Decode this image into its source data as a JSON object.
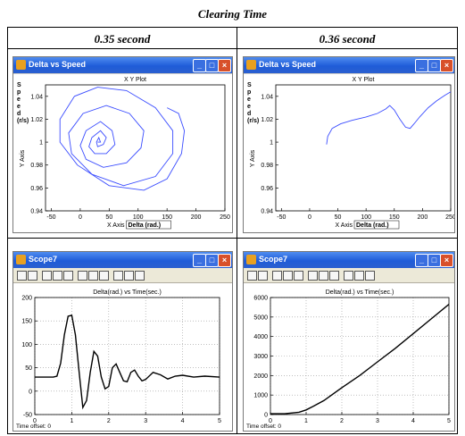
{
  "caption": "Clearing Time",
  "columns": [
    "0.35 second",
    "0.36 second"
  ],
  "colors": {
    "trace_blue": "#3a4cff",
    "trace_black": "#000000",
    "titlebar": "#1f5cd8"
  },
  "windows": {
    "xy_left": {
      "title": "Delta vs Speed",
      "icon": "simulink-window-icon"
    },
    "xy_right": {
      "title": "Delta vs Speed",
      "icon": "simulink-window-icon"
    },
    "scope_left": {
      "title": "Scope7",
      "icon": "scope-window-icon"
    },
    "scope_right": {
      "title": "Scope7",
      "icon": "scope-window-icon"
    }
  },
  "window_buttons": {
    "minimize": "_",
    "maximize": "□",
    "close": "×"
  },
  "chart_data": [
    {
      "type": "line",
      "title": "X Y Plot",
      "xlabel": "X Axis",
      "xlabel_extra": "Delta (rad.)",
      "ylabel": "Y Axis",
      "ylabel_extra": [
        "S",
        "p",
        "e",
        "e",
        "d",
        "(r/s)"
      ],
      "xlim": [
        -60,
        250
      ],
      "ylim": [
        0.94,
        1.05
      ],
      "xticks": [
        "-50",
        "0",
        "50",
        "100",
        "150",
        "200",
        "250"
      ],
      "yticks": [
        "0.94",
        "0.96",
        "0.98",
        "1",
        "1.02",
        "1.04"
      ],
      "series": [
        {
          "x": [
            30,
            35,
            32,
            28,
            30,
            40,
            45,
            35,
            20,
            15,
            25,
            45,
            60,
            55,
            35,
            10,
            0,
            10,
            40,
            80,
            105,
            110,
            85,
            45,
            5,
            -20,
            -15,
            20,
            75,
            130,
            160,
            160,
            130,
            80,
            30,
            -10,
            -35,
            -35,
            -5,
            50,
            110,
            150,
            175,
            180,
            170,
            150
          ],
          "y": [
            1.0,
            1.0,
            1.004,
            1.0,
            0.996,
            0.998,
            1.004,
            1.01,
            1.004,
            0.996,
            0.99,
            0.99,
            0.998,
            1.01,
            1.018,
            1.01,
            0.997,
            0.985,
            0.978,
            0.982,
            0.995,
            1.01,
            1.025,
            1.032,
            1.025,
            1.008,
            0.99,
            0.972,
            0.962,
            0.97,
            0.99,
            1.01,
            1.03,
            1.045,
            1.048,
            1.04,
            1.02,
            1.0,
            0.98,
            0.962,
            0.958,
            0.968,
            0.99,
            1.01,
            1.025,
            1.03
          ]
        }
      ]
    },
    {
      "type": "line",
      "title": "X Y Plot",
      "xlabel": "X Axis",
      "xlabel_extra": "Delta (rad.)",
      "ylabel": "Y Axis",
      "ylabel_extra": [
        "S",
        "p",
        "e",
        "e",
        "d",
        "(r/s)"
      ],
      "xlim": [
        -60,
        250
      ],
      "ylim": [
        0.94,
        1.05
      ],
      "xticks": [
        "-50",
        "0",
        "50",
        "100",
        "150",
        "200",
        "250"
      ],
      "yticks": [
        "0.94",
        "0.96",
        "0.98",
        "1",
        "1.02",
        "1.04"
      ],
      "series": [
        {
          "x": [
            30,
            32,
            40,
            55,
            75,
            100,
            120,
            135,
            142,
            150,
            160,
            170,
            178,
            185,
            195,
            210,
            225,
            240,
            250
          ],
          "y": [
            0.998,
            1.005,
            1.012,
            1.016,
            1.019,
            1.022,
            1.025,
            1.029,
            1.032,
            1.028,
            1.02,
            1.013,
            1.012,
            1.016,
            1.022,
            1.03,
            1.036,
            1.041,
            1.044
          ]
        }
      ]
    },
    {
      "type": "line",
      "title": "Delta(rad.) vs Time(sec.)",
      "xlim": [
        0,
        5
      ],
      "ylim": [
        -50,
        200
      ],
      "xticks": [
        "0",
        "1",
        "2",
        "3",
        "4",
        "5"
      ],
      "yticks": [
        "-50",
        "0",
        "50",
        "100",
        "150",
        "200"
      ],
      "footer": "Time offset:  0",
      "series": [
        {
          "x": [
            0,
            0.5,
            0.6,
            0.7,
            0.8,
            0.9,
            1.0,
            1.1,
            1.2,
            1.3,
            1.4,
            1.5,
            1.6,
            1.7,
            1.8,
            1.9,
            2.0,
            2.1,
            2.2,
            2.3,
            2.4,
            2.5,
            2.6,
            2.7,
            2.8,
            2.9,
            3.0,
            3.2,
            3.4,
            3.6,
            3.8,
            4.0,
            4.3,
            4.6,
            5.0
          ],
          "y": [
            30,
            30,
            32,
            60,
            120,
            160,
            162,
            120,
            40,
            -35,
            -20,
            40,
            85,
            75,
            30,
            5,
            10,
            50,
            58,
            40,
            22,
            20,
            40,
            45,
            32,
            22,
            25,
            40,
            35,
            26,
            32,
            34,
            30,
            32,
            30
          ]
        }
      ]
    },
    {
      "type": "line",
      "title": "Delta(rad.) vs Time(sec.)",
      "xlim": [
        0,
        5
      ],
      "ylim": [
        0,
        6000
      ],
      "xticks": [
        "0",
        "1",
        "2",
        "3",
        "4",
        "5"
      ],
      "yticks": [
        "0",
        "1000",
        "2000",
        "3000",
        "4000",
        "5000",
        "6000"
      ],
      "footer": "Time offset:  0",
      "series": [
        {
          "x": [
            0,
            0.4,
            0.8,
            1.0,
            1.2,
            1.5,
            2.0,
            2.5,
            3.0,
            3.5,
            4.0,
            4.5,
            5.0
          ],
          "y": [
            40,
            40,
            120,
            240,
            420,
            720,
            1380,
            2000,
            2700,
            3400,
            4150,
            4900,
            5650
          ]
        }
      ]
    }
  ]
}
